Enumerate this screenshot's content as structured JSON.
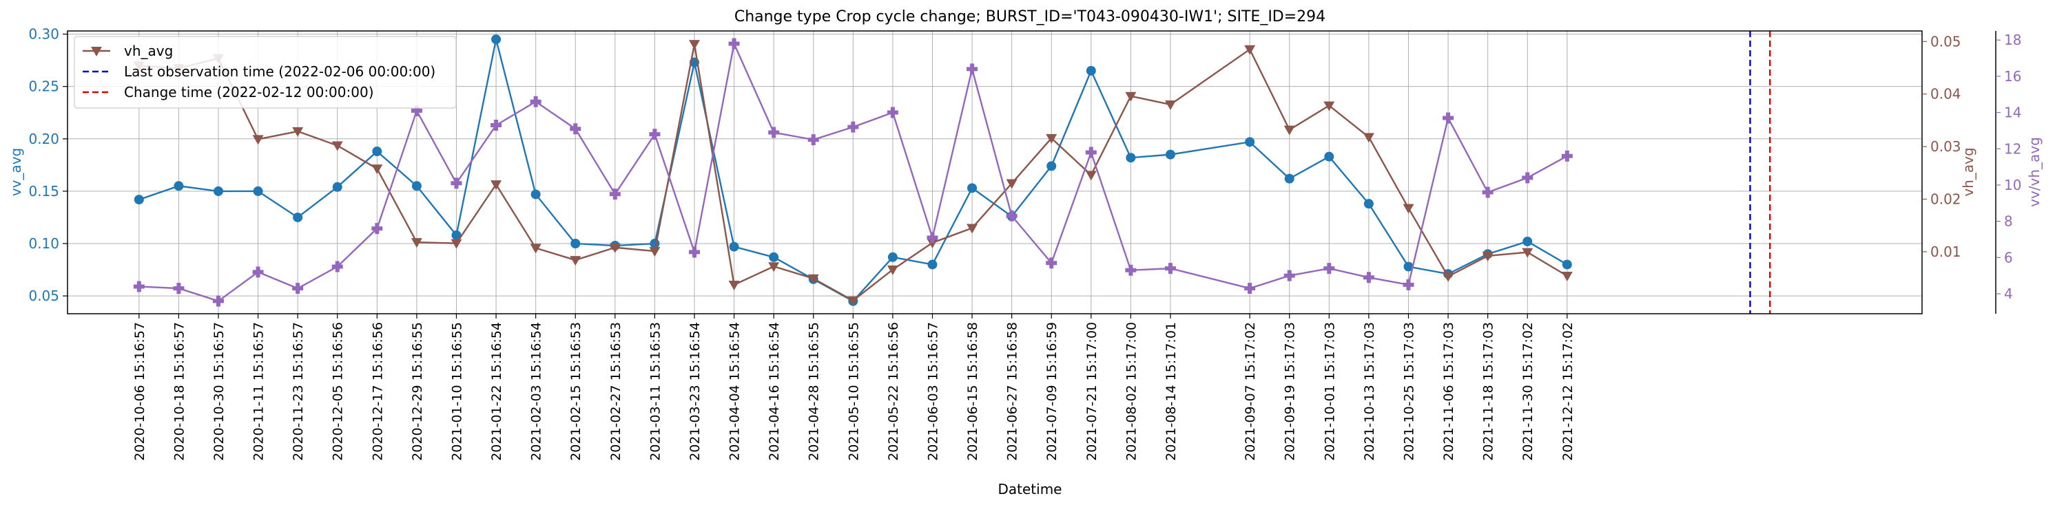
{
  "chart_data": {
    "type": "line",
    "title": "Change type Crop cycle change; BURST_ID='T043-090430-IW1'; SITE_ID=294",
    "xlabel": "Datetime",
    "x": [
      "2020-10-06 15:16:57",
      "2020-10-18 15:16:57",
      "2020-10-30 15:16:57",
      "2020-11-11 15:16:57",
      "2020-11-23 15:16:57",
      "2020-12-05 15:16:56",
      "2020-12-17 15:16:56",
      "2020-12-29 15:16:55",
      "2021-01-10 15:16:55",
      "2021-01-22 15:16:54",
      "2021-02-03 15:16:54",
      "2021-02-15 15:16:53",
      "2021-02-27 15:16:53",
      "2021-03-11 15:16:53",
      "2021-03-23 15:16:54",
      "2021-04-04 15:16:54",
      "2021-04-16 15:16:54",
      "2021-04-28 15:16:55",
      "2021-05-10 15:16:55",
      "2021-05-22 15:16:56",
      "2021-06-03 15:16:57",
      "2021-06-15 15:16:58",
      "2021-06-27 15:16:58",
      "2021-07-09 15:16:59",
      "2021-07-21 15:17:00",
      "2021-08-02 15:17:00",
      "2021-08-14 15:17:01",
      "2021-09-07 15:17:02",
      "2021-09-19 15:17:03",
      "2021-10-01 15:17:03",
      "2021-10-13 15:17:03",
      "2021-10-25 15:17:03",
      "2021-11-06 15:17:03",
      "2021-11-18 15:17:03",
      "2021-11-30 15:17:02",
      "2021-12-12 15:17:02"
    ],
    "x_range": [
      "2020-09-15",
      "2022-03-30"
    ],
    "series": [
      {
        "name": "vv_avg",
        "axis": "left",
        "color": "#1f77b4",
        "marker": "circle",
        "values": [
          0.142,
          0.155,
          0.15,
          0.15,
          0.125,
          0.154,
          0.188,
          0.155,
          0.108,
          0.295,
          0.147,
          0.1,
          0.098,
          0.1,
          0.273,
          0.097,
          0.087,
          0.066,
          0.045,
          0.087,
          0.08,
          0.153,
          0.126,
          0.174,
          0.265,
          0.182,
          0.185,
          0.197,
          0.162,
          0.183,
          0.138,
          0.078,
          0.071,
          0.09,
          0.102,
          0.08
        ]
      },
      {
        "name": "vh_avg",
        "axis": "right",
        "color": "#8c564b",
        "marker": "triangle-down",
        "values": [
          0.0454,
          0.0449,
          0.0468,
          0.0314,
          0.0329,
          0.0302,
          0.0258,
          0.0118,
          0.0116,
          0.0228,
          0.0107,
          0.0084,
          0.0108,
          0.0101,
          0.0495,
          0.0037,
          0.0072,
          0.0049,
          0.0007,
          0.0066,
          0.0117,
          0.0145,
          0.023,
          0.0316,
          0.0246,
          0.0396,
          0.038,
          0.0485,
          0.0332,
          0.0378,
          0.0318,
          0.0183,
          0.0053,
          0.0092,
          0.0099,
          0.0054
        ]
      },
      {
        "name": "vv/vh_avg",
        "axis": "right2",
        "color": "#9467bd",
        "marker": "plus",
        "values": [
          4.4,
          4.3,
          3.6,
          5.2,
          4.3,
          5.5,
          7.6,
          14.1,
          10.1,
          13.3,
          14.6,
          13.1,
          9.5,
          12.8,
          6.3,
          17.8,
          12.9,
          12.5,
          13.2,
          14.0,
          7.1,
          16.4,
          8.3,
          5.7,
          11.8,
          5.3,
          5.4,
          4.3,
          5.0,
          5.4,
          4.9,
          4.5,
          13.7,
          9.6,
          10.4,
          11.6
        ]
      }
    ],
    "vlines": [
      {
        "label": "Last observation time (2022-02-06 00:00:00)",
        "date": "2022-02-06",
        "color": "#0000cc",
        "style": "dashed"
      },
      {
        "label": "Change time (2022-02-12 00:00:00)",
        "date": "2022-02-12",
        "color": "#dd0000",
        "style": "dashed"
      }
    ],
    "axes": {
      "left": {
        "label": "vv_avg",
        "color": "#1f77b4",
        "range": [
          0.033,
          0.303
        ],
        "ticks": [
          "0.05",
          "0.10",
          "0.15",
          "0.20",
          "0.25",
          "0.30"
        ]
      },
      "right": {
        "label": "vh_avg",
        "color": "#8c564b",
        "range": [
          -0.0018,
          0.052
        ],
        "ticks": [
          "0.01",
          "0.02",
          "0.03",
          "0.04",
          "0.05"
        ]
      },
      "right2": {
        "label": "vv/vh_avg",
        "color": "#9467bd",
        "range": [
          2.9,
          18.5
        ],
        "ticks": [
          "4",
          "6",
          "8",
          "10",
          "12",
          "14",
          "16",
          "18"
        ]
      }
    },
    "legend": {
      "position": "top-left",
      "entries": [
        {
          "label": "vh_avg",
          "type": "line",
          "color": "#8c564b",
          "marker": "triangle-down"
        },
        {
          "label": "Last observation time (2022-02-06 00:00:00)",
          "type": "dashed",
          "color": "#0000cc"
        },
        {
          "label": "Change time (2022-02-12 00:00:00)",
          "type": "dashed",
          "color": "#dd0000"
        }
      ]
    },
    "grid": true
  }
}
